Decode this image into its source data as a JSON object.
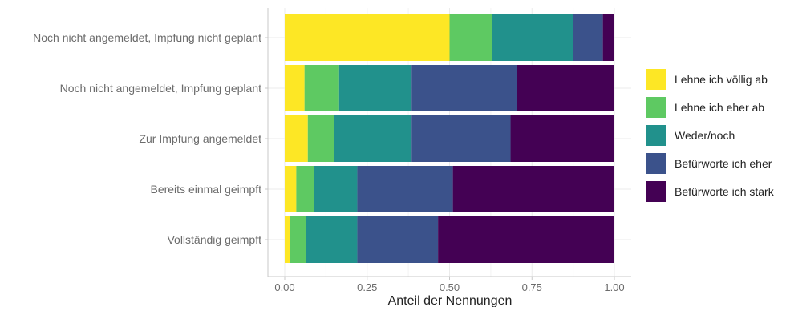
{
  "chart_data": {
    "type": "bar",
    "orientation": "horizontal",
    "stacked": "fill",
    "xlabel": "Anteil der Nennungen",
    "ylabel": "",
    "xlim": [
      0,
      1
    ],
    "x_ticks": [
      "0.00",
      "0.25",
      "0.50",
      "0.75",
      "1.00"
    ],
    "grid": true,
    "legend_position": "right",
    "categories": [
      "Noch nicht angemeldet, Impfung nicht geplant",
      "Noch nicht angemeldet, Impfung geplant",
      "Zur Impfung angemeldet",
      "Bereits einmal geimpft",
      "Vollständig geimpft"
    ],
    "series": [
      {
        "name": "Lehne ich völlig ab",
        "color": "#FDE725",
        "values": [
          0.5,
          0.06,
          0.07,
          0.035,
          0.015
        ]
      },
      {
        "name": "Lehne ich eher ab",
        "color": "#5EC962",
        "values": [
          0.13,
          0.105,
          0.08,
          0.055,
          0.05
        ]
      },
      {
        "name": "Weder/noch",
        "color": "#21918C",
        "values": [
          0.245,
          0.22,
          0.235,
          0.13,
          0.155
        ]
      },
      {
        "name": "Befürworte ich eher",
        "color": "#3B528B",
        "values": [
          0.09,
          0.32,
          0.3,
          0.29,
          0.245
        ]
      },
      {
        "name": "Befürworte ich stark",
        "color": "#440154",
        "values": [
          0.035,
          0.295,
          0.315,
          0.49,
          0.535
        ]
      }
    ]
  }
}
